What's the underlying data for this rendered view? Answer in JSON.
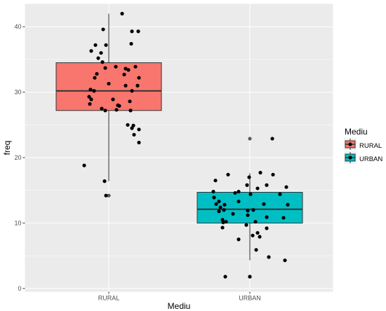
{
  "chart_data": {
    "type": "boxplot",
    "xlabel": "Mediu",
    "ylabel": "freq",
    "categories": [
      "RURAL",
      "URBAN"
    ],
    "ylim": [
      -0.5,
      43.5
    ],
    "yticks": [
      0,
      10,
      20,
      30,
      40
    ],
    "grid": true,
    "legend": {
      "title": "Mediu",
      "position": "right",
      "entries": [
        "RURAL",
        "URBAN"
      ]
    },
    "colors": {
      "RURAL": "#f8766d",
      "URBAN": "#00bfc4",
      "panel_background": "#ebebeb",
      "grid": "#ffffff",
      "outline": "#333333",
      "outlier": "#595959"
    },
    "boxes": [
      {
        "category": "RURAL",
        "lower_whisker": 16.4,
        "q1": 27.2,
        "median": 30.2,
        "q3": 34.5,
        "upper_whisker": 42.0,
        "outliers": [
          14.2
        ]
      },
      {
        "category": "URBAN",
        "lower_whisker": 4.3,
        "q1": 10.0,
        "median": 12.1,
        "q3": 14.7,
        "upper_whisker": 17.6,
        "outliers": [
          22.9,
          1.8
        ]
      }
    ],
    "points": [
      {
        "category": "RURAL",
        "x_offset": 0.19,
        "y": 42.0
      },
      {
        "category": "RURAL",
        "x_offset": -0.08,
        "y": 39.6
      },
      {
        "category": "RURAL",
        "x_offset": 0.33,
        "y": 39.3
      },
      {
        "category": "RURAL",
        "x_offset": 0.42,
        "y": 39.3
      },
      {
        "category": "RURAL",
        "x_offset": 0.32,
        "y": 37.4
      },
      {
        "category": "RURAL",
        "x_offset": -0.19,
        "y": 37.2
      },
      {
        "category": "RURAL",
        "x_offset": -0.04,
        "y": 37.2
      },
      {
        "category": "RURAL",
        "x_offset": -0.25,
        "y": 36.3
      },
      {
        "category": "RURAL",
        "x_offset": -0.11,
        "y": 36.0
      },
      {
        "category": "RURAL",
        "x_offset": -0.15,
        "y": 35.2
      },
      {
        "category": "RURAL",
        "x_offset": -0.09,
        "y": 34.6
      },
      {
        "category": "RURAL",
        "x_offset": 0.1,
        "y": 33.9
      },
      {
        "category": "RURAL",
        "x_offset": 0.24,
        "y": 33.6
      },
      {
        "category": "RURAL",
        "x_offset": 0.38,
        "y": 33.9
      },
      {
        "category": "RURAL",
        "x_offset": -0.05,
        "y": 33.7
      },
      {
        "category": "RURAL",
        "x_offset": 0.28,
        "y": 33.4
      },
      {
        "category": "RURAL",
        "x_offset": -0.17,
        "y": 32.8
      },
      {
        "category": "RURAL",
        "x_offset": 0.22,
        "y": 32.7
      },
      {
        "category": "RURAL",
        "x_offset": -0.2,
        "y": 32.2
      },
      {
        "category": "RURAL",
        "x_offset": 0.43,
        "y": 32.2
      },
      {
        "category": "RURAL",
        "x_offset": 0.0,
        "y": 31.3
      },
      {
        "category": "RURAL",
        "x_offset": 0.24,
        "y": 31.0
      },
      {
        "category": "RURAL",
        "x_offset": 0.41,
        "y": 31.0
      },
      {
        "category": "RURAL",
        "x_offset": -0.26,
        "y": 30.4
      },
      {
        "category": "RURAL",
        "x_offset": 0.33,
        "y": 30.2
      },
      {
        "category": "RURAL",
        "x_offset": -0.21,
        "y": 30.2
      },
      {
        "category": "RURAL",
        "x_offset": -0.28,
        "y": 29.3
      },
      {
        "category": "RURAL",
        "x_offset": -0.25,
        "y": 28.9
      },
      {
        "category": "RURAL",
        "x_offset": 0.06,
        "y": 28.9
      },
      {
        "category": "RURAL",
        "x_offset": 0.3,
        "y": 28.6
      },
      {
        "category": "RURAL",
        "x_offset": 0.13,
        "y": 28.0
      },
      {
        "category": "RURAL",
        "x_offset": -0.27,
        "y": 28.2
      },
      {
        "category": "RURAL",
        "x_offset": 0.15,
        "y": 27.9
      },
      {
        "category": "RURAL",
        "x_offset": -0.1,
        "y": 27.5
      },
      {
        "category": "RURAL",
        "x_offset": 0.11,
        "y": 27.3
      },
      {
        "category": "RURAL",
        "x_offset": -0.05,
        "y": 27.2
      },
      {
        "category": "RURAL",
        "x_offset": 0.31,
        "y": 27.2
      },
      {
        "category": "RURAL",
        "x_offset": 0.27,
        "y": 25.0
      },
      {
        "category": "RURAL",
        "x_offset": 0.35,
        "y": 24.9
      },
      {
        "category": "RURAL",
        "x_offset": 0.33,
        "y": 24.5
      },
      {
        "category": "RURAL",
        "x_offset": 0.43,
        "y": 24.3
      },
      {
        "category": "RURAL",
        "x_offset": 0.36,
        "y": 23.5
      },
      {
        "category": "RURAL",
        "x_offset": 0.43,
        "y": 22.3
      },
      {
        "category": "RURAL",
        "x_offset": -0.35,
        "y": 18.8
      },
      {
        "category": "RURAL",
        "x_offset": -0.06,
        "y": 16.4
      },
      {
        "category": "RURAL",
        "x_offset": -0.04,
        "y": 14.2
      },
      {
        "category": "URBAN",
        "x_offset": 0.32,
        "y": 22.9
      },
      {
        "category": "URBAN",
        "x_offset": -0.49,
        "y": 16.5
      },
      {
        "category": "URBAN",
        "x_offset": -0.31,
        "y": 17.4
      },
      {
        "category": "URBAN",
        "x_offset": -0.01,
        "y": 17.0
      },
      {
        "category": "URBAN",
        "x_offset": 0.15,
        "y": 17.7
      },
      {
        "category": "URBAN",
        "x_offset": 0.33,
        "y": 17.4
      },
      {
        "category": "URBAN",
        "x_offset": -0.04,
        "y": 15.8
      },
      {
        "category": "URBAN",
        "x_offset": 0.24,
        "y": 15.8
      },
      {
        "category": "URBAN",
        "x_offset": 0.52,
        "y": 15.5
      },
      {
        "category": "URBAN",
        "x_offset": 0.11,
        "y": 15.3
      },
      {
        "category": "URBAN",
        "x_offset": -0.52,
        "y": 14.8
      },
      {
        "category": "URBAN",
        "x_offset": -0.21,
        "y": 14.6
      },
      {
        "category": "URBAN",
        "x_offset": -0.16,
        "y": 14.8
      },
      {
        "category": "URBAN",
        "x_offset": 0.01,
        "y": 14.4
      },
      {
        "category": "URBAN",
        "x_offset": 0.43,
        "y": 14.4
      },
      {
        "category": "URBAN",
        "x_offset": -0.51,
        "y": 13.9
      },
      {
        "category": "URBAN",
        "x_offset": -0.44,
        "y": 13.3
      },
      {
        "category": "URBAN",
        "x_offset": -0.16,
        "y": 13.3
      },
      {
        "category": "URBAN",
        "x_offset": -0.48,
        "y": 12.9
      },
      {
        "category": "URBAN",
        "x_offset": -0.42,
        "y": 12.4
      },
      {
        "category": "URBAN",
        "x_offset": -0.36,
        "y": 12.8
      },
      {
        "category": "URBAN",
        "x_offset": -0.37,
        "y": 12.0
      },
      {
        "category": "URBAN",
        "x_offset": -0.44,
        "y": 11.8
      },
      {
        "category": "URBAN",
        "x_offset": -0.24,
        "y": 11.4
      },
      {
        "category": "URBAN",
        "x_offset": -0.03,
        "y": 11.9
      },
      {
        "category": "URBAN",
        "x_offset": 0.05,
        "y": 12.0
      },
      {
        "category": "URBAN",
        "x_offset": 0.2,
        "y": 12.9
      },
      {
        "category": "URBAN",
        "x_offset": 0.54,
        "y": 12.8
      },
      {
        "category": "URBAN",
        "x_offset": -0.03,
        "y": 11.2
      },
      {
        "category": "URBAN",
        "x_offset": 0.24,
        "y": 10.9
      },
      {
        "category": "URBAN",
        "x_offset": 0.48,
        "y": 10.8
      },
      {
        "category": "URBAN",
        "x_offset": -0.39,
        "y": 10.5
      },
      {
        "category": "URBAN",
        "x_offset": -0.38,
        "y": 10.1
      },
      {
        "category": "URBAN",
        "x_offset": -0.34,
        "y": 10.2
      },
      {
        "category": "URBAN",
        "x_offset": 0.08,
        "y": 10.2
      },
      {
        "category": "URBAN",
        "x_offset": -0.05,
        "y": 9.7
      },
      {
        "category": "URBAN",
        "x_offset": -0.39,
        "y": 9.3
      },
      {
        "category": "URBAN",
        "x_offset": 0.24,
        "y": 9.2
      },
      {
        "category": "URBAN",
        "x_offset": 0.11,
        "y": 8.5
      },
      {
        "category": "URBAN",
        "x_offset": 0.04,
        "y": 8.1
      },
      {
        "category": "URBAN",
        "x_offset": 0.14,
        "y": 7.9
      },
      {
        "category": "URBAN",
        "x_offset": -0.16,
        "y": 7.5
      },
      {
        "category": "URBAN",
        "x_offset": 0.09,
        "y": 5.9
      },
      {
        "category": "URBAN",
        "x_offset": 0.27,
        "y": 4.8
      },
      {
        "category": "URBAN",
        "x_offset": 0.5,
        "y": 4.3
      },
      {
        "category": "URBAN",
        "x_offset": -0.35,
        "y": 1.8
      },
      {
        "category": "URBAN",
        "x_offset": 0.0,
        "y": 1.8
      }
    ]
  }
}
